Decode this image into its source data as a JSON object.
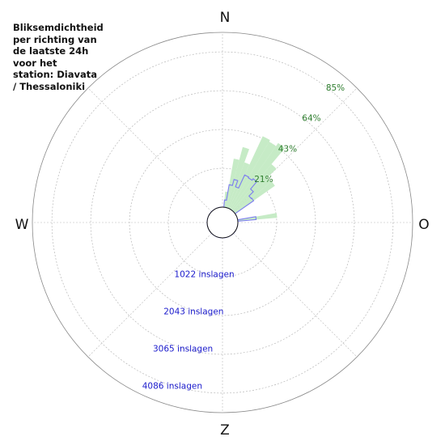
{
  "title_lines": [
    "Bliksemdichtheid",
    "per richting van",
    "de laatste 24h",
    "voor het",
    "station: Diavata",
    "/ Thessaloniki"
  ],
  "compass": {
    "n": "N",
    "e": "O",
    "s": "Z",
    "w": "W"
  },
  "colors": {
    "fill": "#c6ebc6",
    "line": "#7b7bf0",
    "pct_text": "#2e7d2e",
    "count_text": "#1a1acc",
    "grid": "#b8b8b8",
    "outer_ring": "#888888"
  },
  "chart_data": {
    "type": "polar-bar",
    "direction_labels": [
      "N",
      "O",
      "Z",
      "W"
    ],
    "rings": [
      {
        "percent_label": "21%",
        "count_label": "1022 inslagen"
      },
      {
        "percent_label": "43%",
        "count_label": "2043 inslagen"
      },
      {
        "percent_label": "64%",
        "count_label": "3065 inslagen"
      },
      {
        "percent_label": "85%",
        "count_label": "4086 inslagen"
      }
    ],
    "ring_percent_values": [
      21,
      43,
      64,
      85
    ],
    "ring_count_values": [
      1022,
      2043,
      3065,
      4086
    ],
    "sector_width_deg": 5,
    "strike_counts": [
      0,
      410,
      1300,
      1650,
      1280,
      2100,
      2050,
      2150,
      1600,
      1250,
      1280,
      0,
      0,
      0,
      0,
      0,
      1040,
      0,
      0,
      0,
      0,
      0,
      0,
      0,
      0,
      0,
      0,
      0,
      0,
      0,
      0,
      0,
      0,
      0,
      0,
      0,
      0,
      0,
      0,
      0,
      0,
      0,
      0,
      0,
      0,
      0,
      0,
      0,
      0,
      0,
      0,
      0,
      0,
      0,
      0,
      0,
      0,
      0,
      0,
      0,
      0,
      0,
      0,
      0,
      0,
      0,
      0,
      0,
      0,
      0,
      0,
      0,
      0,
      0,
      0,
      0,
      0,
      0,
      0,
      0,
      0,
      0,
      0,
      0,
      0,
      0,
      0,
      0,
      0,
      0,
      0,
      0,
      0,
      0,
      0,
      0,
      0,
      0,
      0,
      0,
      0,
      0,
      0,
      0,
      0,
      0,
      0,
      0,
      0,
      0,
      0,
      0,
      0,
      0,
      0,
      0,
      0,
      0,
      0,
      0,
      0,
      0,
      0,
      0,
      0,
      0,
      0,
      0,
      0,
      0,
      0,
      0,
      0,
      0,
      0,
      0,
      0,
      0,
      0,
      0,
      0,
      0,
      0,
      0,
      0,
      0,
      0,
      0,
      0,
      0,
      0,
      0,
      0,
      0,
      0,
      0,
      0,
      0,
      0,
      0,
      0,
      0,
      0,
      0,
      0,
      0,
      0,
      0,
      0,
      0,
      0,
      0,
      0,
      0,
      0,
      0,
      0,
      0,
      0,
      0,
      0,
      0,
      0,
      0,
      0,
      0,
      0,
      0,
      0,
      0,
      0,
      0,
      0,
      0,
      0,
      0,
      0,
      0,
      0,
      0,
      0,
      0,
      0,
      0,
      0,
      0,
      0,
      0,
      0,
      0,
      0,
      0,
      0,
      0,
      0,
      0,
      0,
      0,
      0,
      0,
      0,
      0,
      0,
      0,
      0,
      0,
      0,
      0,
      0,
      0,
      0,
      0,
      0,
      0,
      0,
      0,
      0,
      0,
      0,
      0,
      0,
      0,
      0,
      0,
      0,
      0,
      0,
      0,
      0,
      0,
      0,
      0,
      0,
      0,
      0,
      0,
      0,
      0,
      0,
      0,
      0,
      0,
      0,
      0,
      0,
      0,
      0,
      0,
      0,
      0,
      0,
      0,
      0,
      0,
      0,
      0,
      0,
      0,
      0,
      0,
      0,
      0,
      0,
      0,
      0,
      0,
      0,
      0,
      0,
      0,
      0,
      0,
      0,
      0,
      0,
      0,
      0,
      0,
      0,
      0,
      0,
      0,
      0,
      0,
      0,
      0,
      0,
      0,
      0,
      0,
      0,
      0,
      0,
      0,
      0,
      0,
      0,
      0,
      0,
      0,
      0,
      0,
      0,
      0,
      0,
      0,
      0,
      0,
      0,
      0,
      0,
      0,
      0,
      0,
      0,
      0,
      0,
      0,
      0,
      0,
      0,
      0,
      0,
      0,
      0,
      0,
      0,
      0,
      0,
      0,
      0,
      0,
      0,
      0,
      0,
      0,
      0,
      0,
      0,
      0
    ]
  }
}
